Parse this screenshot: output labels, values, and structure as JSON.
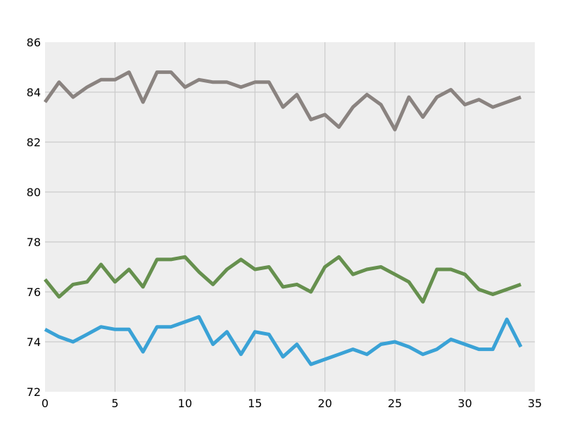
{
  "chart_data": {
    "type": "line",
    "title": "",
    "xlabel": "",
    "ylabel": "",
    "xlim": [
      0,
      35
    ],
    "ylim": [
      72,
      86
    ],
    "xticks": [
      "0",
      "5",
      "10",
      "15",
      "20",
      "25",
      "30",
      "35"
    ],
    "yticks": [
      "72",
      "74",
      "76",
      "78",
      "80",
      "82",
      "84",
      "86"
    ],
    "grid": true,
    "legend": "none",
    "plot_background": "#eeeeee",
    "x": [
      0,
      1,
      2,
      3,
      4,
      5,
      6,
      7,
      8,
      9,
      10,
      11,
      12,
      13,
      14,
      15,
      16,
      17,
      18,
      19,
      20,
      21,
      22,
      23,
      24,
      25,
      26,
      27,
      28,
      29,
      30,
      31,
      32,
      33,
      34
    ],
    "series": [
      {
        "color": "#8a8380",
        "values": [
          83.6,
          84.4,
          83.8,
          84.2,
          84.5,
          84.5,
          84.8,
          83.6,
          84.8,
          84.8,
          84.2,
          84.5,
          84.4,
          84.4,
          84.2,
          84.4,
          84.4,
          83.4,
          83.9,
          82.9,
          83.1,
          82.6,
          83.4,
          83.9,
          83.5,
          82.5,
          83.8,
          83.0,
          83.8,
          84.1,
          83.5,
          83.7,
          83.4,
          83.6,
          83.8
        ]
      },
      {
        "color": "#66904e",
        "values": [
          76.5,
          75.8,
          76.3,
          76.4,
          77.1,
          76.4,
          76.9,
          76.2,
          77.3,
          77.3,
          77.4,
          76.8,
          76.3,
          76.9,
          77.3,
          76.9,
          77.0,
          76.2,
          76.3,
          76.0,
          77.0,
          77.4,
          76.7,
          76.9,
          77.0,
          76.7,
          76.4,
          75.6,
          76.9,
          76.9,
          76.7,
          76.1,
          75.9,
          76.1,
          76.3
        ]
      },
      {
        "color": "#3aa2d6",
        "values": [
          74.5,
          74.2,
          74.0,
          74.3,
          74.6,
          74.5,
          74.5,
          73.6,
          74.6,
          74.6,
          74.8,
          75.0,
          73.9,
          74.4,
          73.5,
          74.4,
          74.3,
          73.4,
          73.9,
          73.1,
          73.3,
          73.5,
          73.7,
          73.5,
          73.9,
          74.0,
          73.8,
          73.5,
          73.7,
          74.1,
          73.9,
          73.7,
          73.7,
          74.9,
          73.8
        ]
      }
    ]
  }
}
